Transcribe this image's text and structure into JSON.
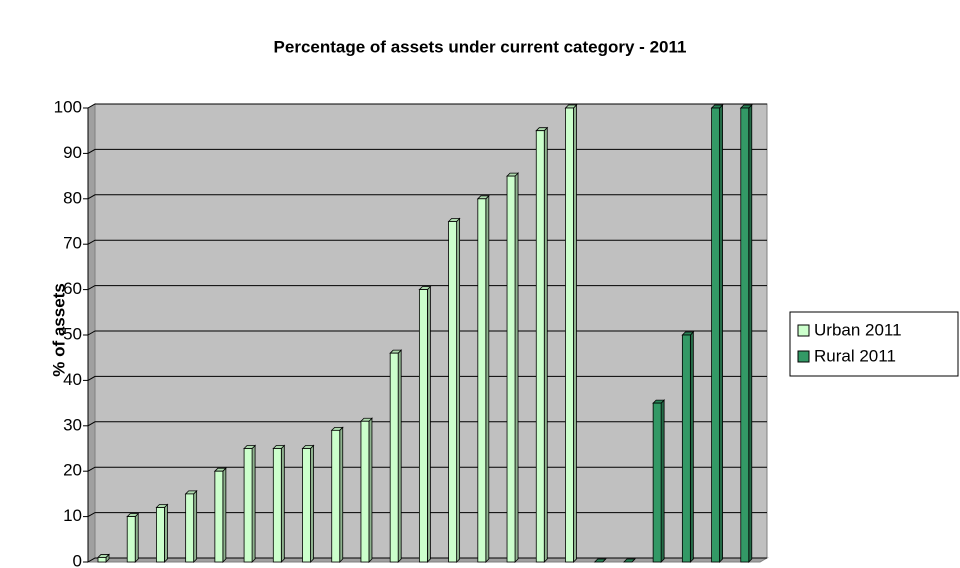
{
  "chart_data": {
    "type": "bar3d",
    "title": "Percentage of assets under current category - 2011",
    "y_label": "% of assets",
    "categories": [
      null,
      null,
      null,
      null,
      null,
      null,
      null,
      null,
      null,
      null,
      null,
      null,
      null,
      null,
      null,
      null,
      null,
      null,
      null,
      null,
      null,
      null,
      null
    ],
    "series": [
      {
        "name": "Urban 2011",
        "color": "#ccffcc",
        "values": [
          1,
          10,
          12,
          15,
          20,
          25,
          25,
          25,
          29,
          31,
          46,
          60,
          75,
          80,
          85,
          95,
          100,
          null,
          null,
          null,
          null,
          null,
          null
        ]
      },
      {
        "name": "Rural 2011",
        "color": "#339966",
        "values": [
          null,
          null,
          null,
          null,
          null,
          null,
          null,
          null,
          null,
          null,
          null,
          null,
          null,
          null,
          null,
          null,
          null,
          0,
          0,
          35,
          50,
          100,
          100
        ]
      }
    ],
    "ylim": [
      0,
      100
    ],
    "yticks": [
      0,
      10,
      20,
      30,
      40,
      50,
      60,
      70,
      80,
      90,
      100
    ],
    "grid": true,
    "legend": "right"
  }
}
